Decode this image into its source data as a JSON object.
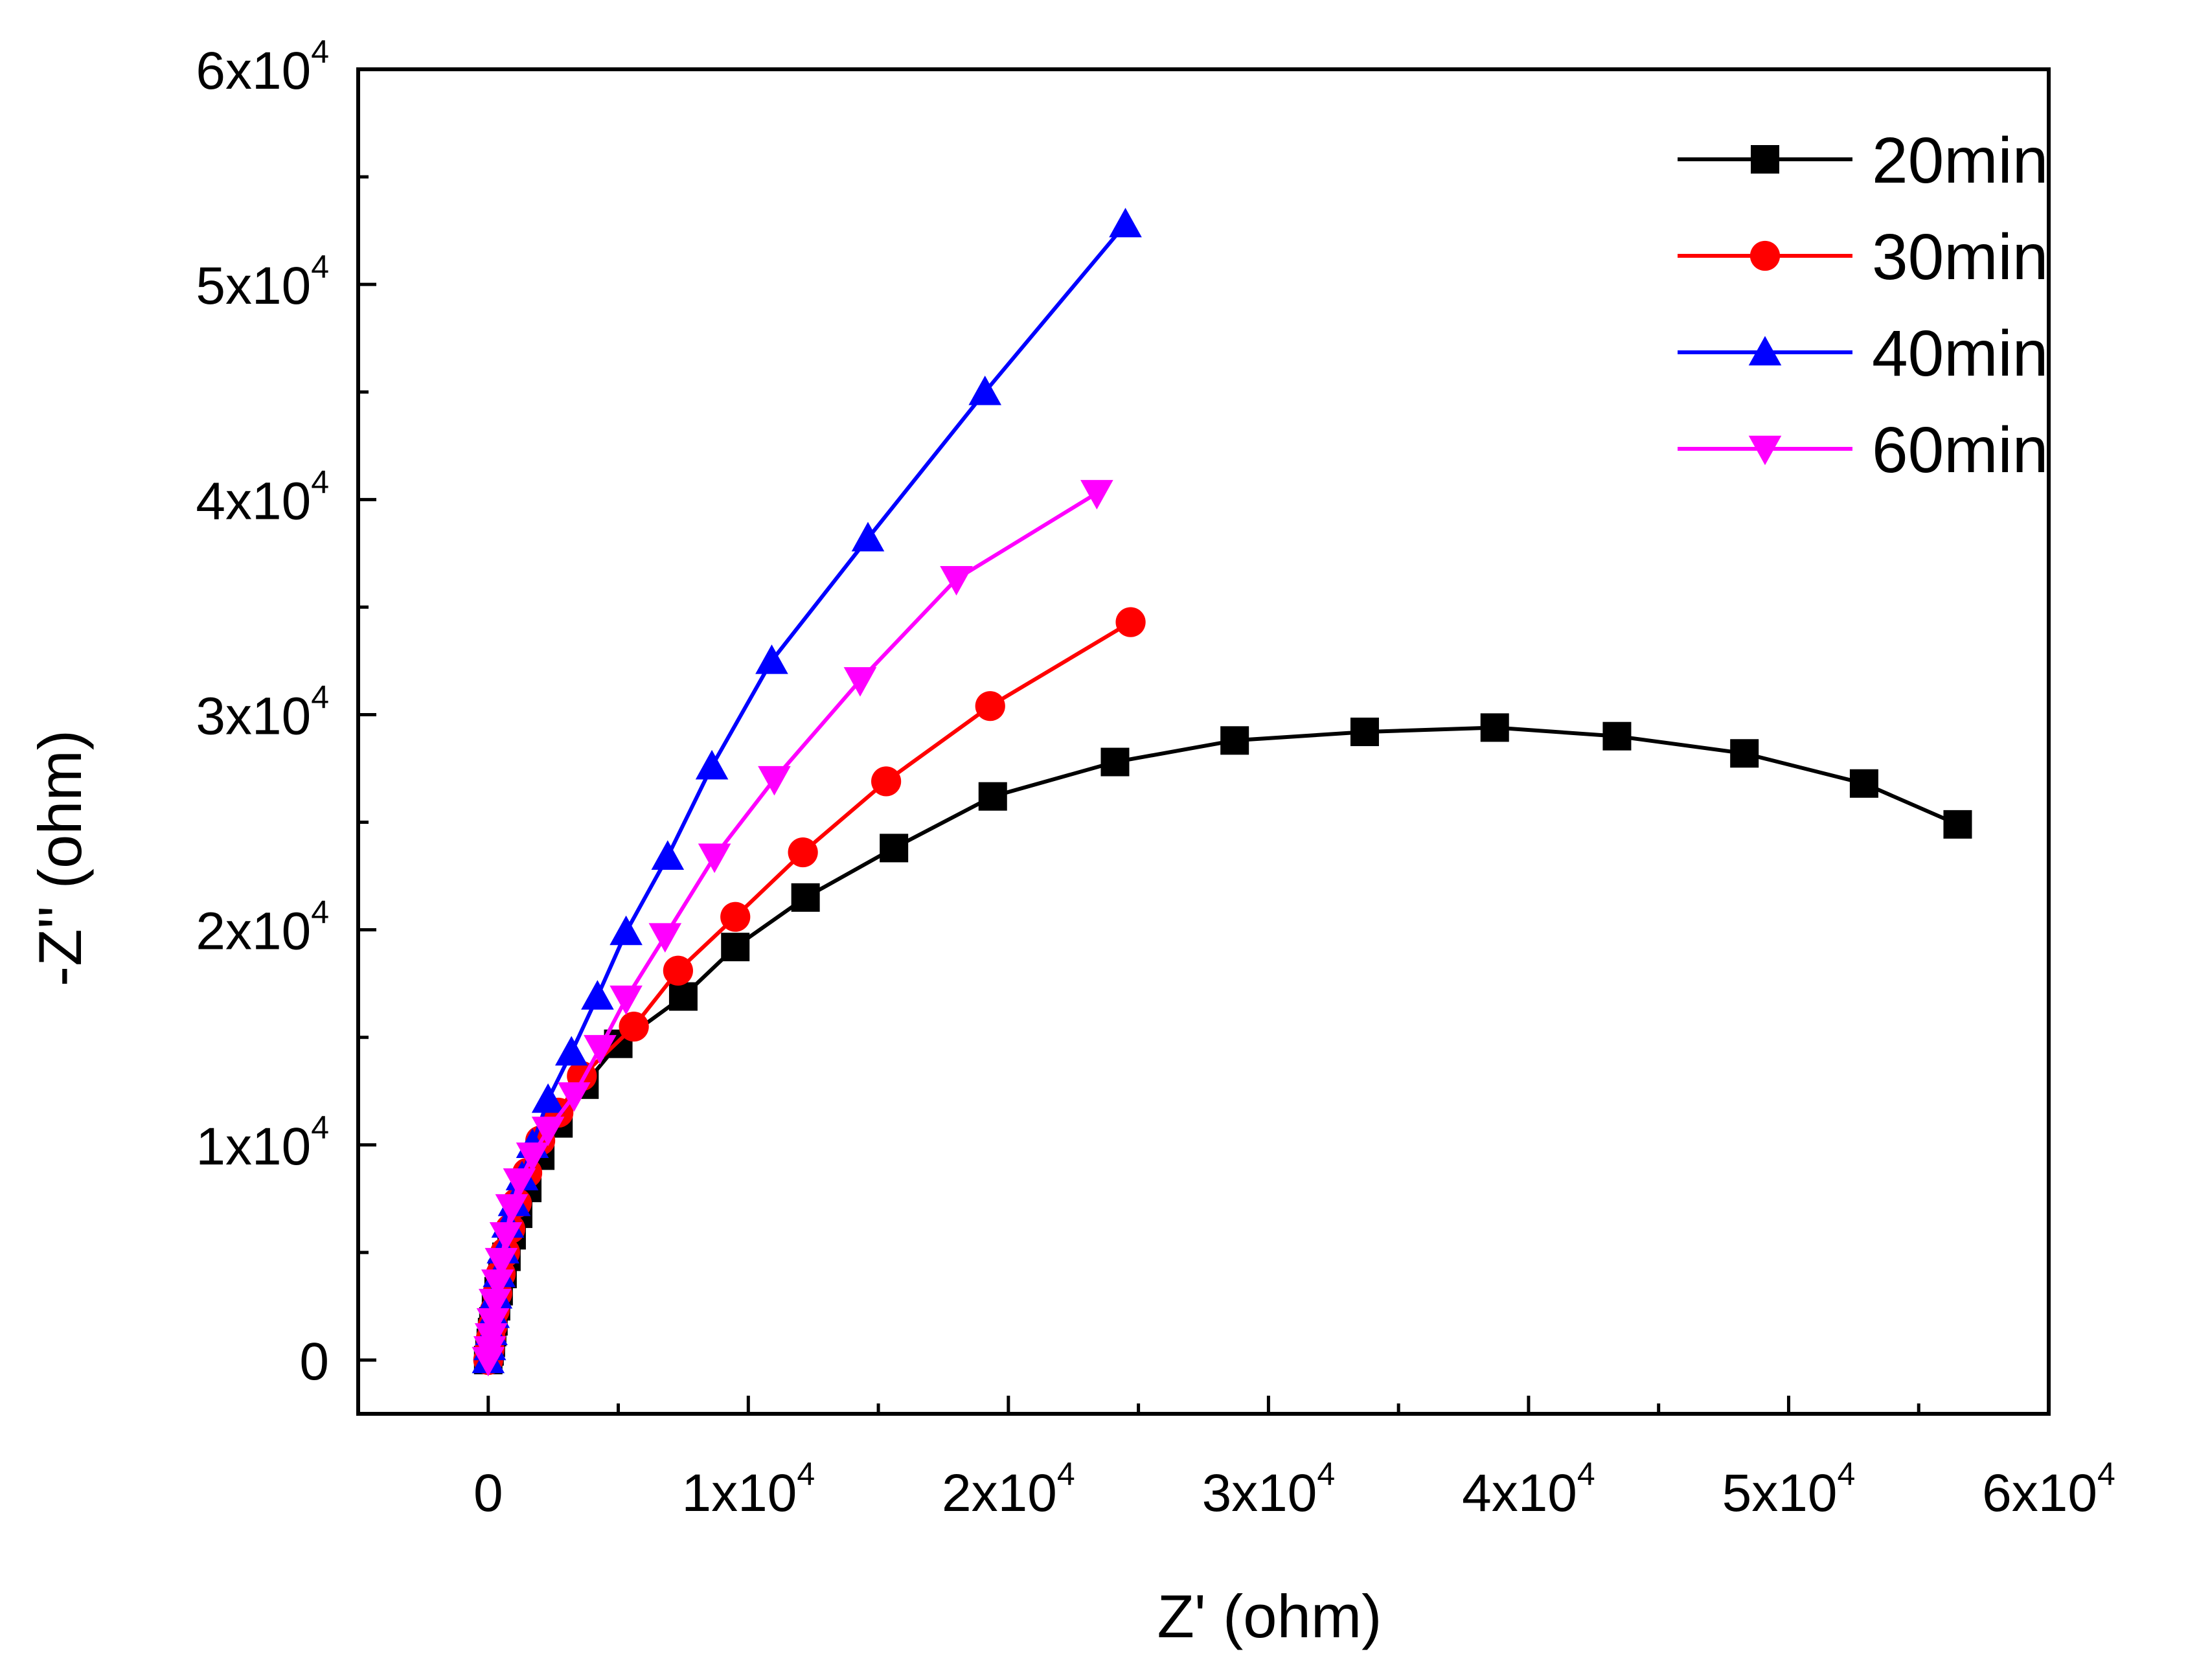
{
  "chart_data": {
    "type": "scatter",
    "title": "",
    "xlabel": "Z' (ohm)",
    "ylabel": "-Z'' (ohm)",
    "xlim": [
      -5000,
      60000
    ],
    "ylim": [
      -2500,
      60000
    ],
    "grid": false,
    "legend_position": "top-right",
    "x_ticks": [
      {
        "value": 0,
        "mantissa": "0",
        "exponent": ""
      },
      {
        "value": 10000,
        "mantissa": "1x10",
        "exponent": "4"
      },
      {
        "value": 20000,
        "mantissa": "2x10",
        "exponent": "4"
      },
      {
        "value": 30000,
        "mantissa": "3x10",
        "exponent": "4"
      },
      {
        "value": 40000,
        "mantissa": "4x10",
        "exponent": "4"
      },
      {
        "value": 50000,
        "mantissa": "5x10",
        "exponent": "4"
      },
      {
        "value": 60000,
        "mantissa": "6x10",
        "exponent": "4"
      }
    ],
    "y_ticks": [
      {
        "value": 0,
        "mantissa": "0",
        "exponent": ""
      },
      {
        "value": 10000,
        "mantissa": "1x10",
        "exponent": "4"
      },
      {
        "value": 20000,
        "mantissa": "2x10",
        "exponent": "4"
      },
      {
        "value": 30000,
        "mantissa": "3x10",
        "exponent": "4"
      },
      {
        "value": 40000,
        "mantissa": "4x10",
        "exponent": "4"
      },
      {
        "value": 50000,
        "mantissa": "5x10",
        "exponent": "4"
      },
      {
        "value": 60000,
        "mantissa": "6x10",
        "exponent": "4"
      }
    ],
    "series": [
      {
        "name": "20min",
        "color": "#000000",
        "marker": "square",
        "points": [
          [
            0,
            0
          ],
          [
            50,
            400
          ],
          [
            100,
            800
          ],
          [
            150,
            1300
          ],
          [
            200,
            1800
          ],
          [
            300,
            2500
          ],
          [
            400,
            3200
          ],
          [
            550,
            4000
          ],
          [
            700,
            4800
          ],
          [
            900,
            5800
          ],
          [
            1150,
            6800
          ],
          [
            1500,
            8000
          ],
          [
            2000,
            9500
          ],
          [
            2700,
            11000
          ],
          [
            3700,
            12800
          ],
          [
            5000,
            14700
          ],
          [
            7500,
            16900
          ],
          [
            9500,
            19200
          ],
          [
            12200,
            21500
          ],
          [
            15600,
            23800
          ],
          [
            19400,
            26200
          ],
          [
            24100,
            27800
          ],
          [
            28700,
            28800
          ],
          [
            33700,
            29200
          ],
          [
            38700,
            29400
          ],
          [
            43400,
            29000
          ],
          [
            48300,
            28200
          ],
          [
            52900,
            26800
          ],
          [
            56500,
            24900
          ]
        ]
      },
      {
        "name": "30min",
        "color": "#ff0000",
        "marker": "circle",
        "points": [
          [
            0,
            0
          ],
          [
            50,
            500
          ],
          [
            100,
            1000
          ],
          [
            170,
            1600
          ],
          [
            250,
            2300
          ],
          [
            350,
            3100
          ],
          [
            480,
            4000
          ],
          [
            650,
            5000
          ],
          [
            850,
            6100
          ],
          [
            1100,
            7300
          ],
          [
            1500,
            8700
          ],
          [
            2000,
            10200
          ],
          [
            2700,
            11500
          ],
          [
            3600,
            13200
          ],
          [
            5600,
            15500
          ],
          [
            7300,
            18100
          ],
          [
            9500,
            20600
          ],
          [
            12100,
            23600
          ],
          [
            15300,
            26900
          ],
          [
            19300,
            30400
          ],
          [
            24700,
            34300
          ]
        ]
      },
      {
        "name": "40min",
        "color": "#0000ff",
        "marker": "triangle-up",
        "points": [
          [
            0,
            0
          ],
          [
            60,
            600
          ],
          [
            120,
            1300
          ],
          [
            200,
            2100
          ],
          [
            300,
            3000
          ],
          [
            420,
            4000
          ],
          [
            570,
            5100
          ],
          [
            750,
            6300
          ],
          [
            1000,
            7300
          ],
          [
            1300,
            8500
          ],
          [
            1700,
            10000
          ],
          [
            2300,
            12100
          ],
          [
            3200,
            14300
          ],
          [
            4200,
            16900
          ],
          [
            5300,
            19900
          ],
          [
            6900,
            23400
          ],
          [
            8600,
            27600
          ],
          [
            10900,
            32500
          ],
          [
            14600,
            38200
          ],
          [
            19100,
            45000
          ],
          [
            24500,
            52800
          ]
        ]
      },
      {
        "name": "60min",
        "color": "#ff00ff",
        "marker": "triangle-down",
        "points": [
          [
            0,
            0
          ],
          [
            60,
            500
          ],
          [
            110,
            1100
          ],
          [
            180,
            1800
          ],
          [
            260,
            2700
          ],
          [
            360,
            3600
          ],
          [
            500,
            4600
          ],
          [
            680,
            5800
          ],
          [
            900,
            7100
          ],
          [
            1200,
            8300
          ],
          [
            1700,
            9500
          ],
          [
            2300,
            10700
          ],
          [
            3300,
            12300
          ],
          [
            4300,
            14500
          ],
          [
            5300,
            16800
          ],
          [
            6800,
            19700
          ],
          [
            8700,
            23400
          ],
          [
            11000,
            27000
          ],
          [
            14300,
            31600
          ],
          [
            18000,
            36300
          ],
          [
            23400,
            40300
          ]
        ]
      }
    ]
  }
}
